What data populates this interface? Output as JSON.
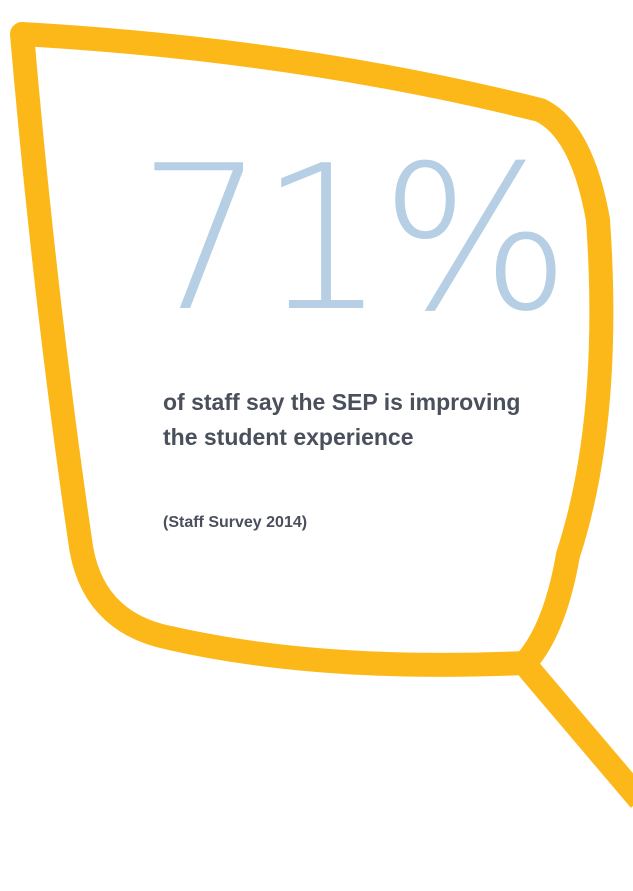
{
  "stat": {
    "figure": "71%",
    "caption": "of staff say the SEP is improving the student experience",
    "source": "(Staff Survey 2014)"
  },
  "colors": {
    "frame": "#fbb818",
    "figure": "#b6cfe4",
    "text": "#4a4f5c",
    "background": "#ffffff"
  },
  "graphic": {
    "shape": "magnifying-glass-outline"
  }
}
